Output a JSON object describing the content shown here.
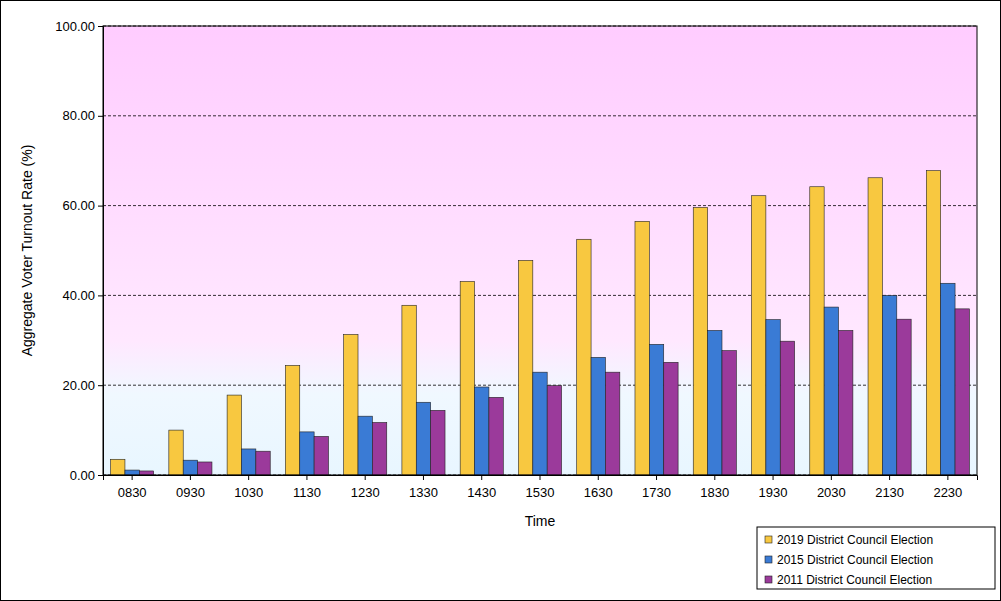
{
  "chart_data": {
    "type": "bar",
    "x_label": "Time",
    "y_label": "Aggregate Voter Turnout Rate (%)",
    "categories": [
      "0830",
      "0930",
      "1030",
      "1130",
      "1230",
      "1330",
      "1430",
      "1530",
      "1630",
      "1730",
      "1830",
      "1930",
      "2030",
      "2130",
      "2230"
    ],
    "series": [
      {
        "name": "2019 District Council Election",
        "color": "#f8c840",
        "values": [
          3.5,
          10.0,
          17.8,
          24.4,
          31.3,
          37.8,
          43.1,
          47.8,
          52.5,
          56.5,
          59.6,
          62.2,
          64.2,
          66.2,
          67.8
        ]
      },
      {
        "name": "2015 District Council Election",
        "color": "#3a7bd5",
        "values": [
          1.1,
          3.3,
          5.8,
          9.6,
          13.1,
          16.2,
          19.6,
          22.9,
          26.2,
          29.1,
          32.2,
          34.6,
          37.4,
          40.0,
          42.7
        ]
      },
      {
        "name": "2011 District Council Election",
        "color": "#9b3a9b",
        "values": [
          0.9,
          2.9,
          5.3,
          8.6,
          11.7,
          14.4,
          17.3,
          19.9,
          22.9,
          25.1,
          27.7,
          29.8,
          32.2,
          34.7,
          37.0
        ]
      }
    ],
    "ylim": [
      0,
      100
    ],
    "yticks": [
      {
        "value": 0,
        "label": "0.00"
      },
      {
        "value": 20,
        "label": "20.00"
      },
      {
        "value": 40,
        "label": "40.00"
      },
      {
        "value": 60,
        "label": "60.00"
      },
      {
        "value": 80,
        "label": "80.00"
      },
      {
        "value": 100,
        "label": "100.00"
      }
    ],
    "grid": true,
    "legend": "bottom-right"
  }
}
